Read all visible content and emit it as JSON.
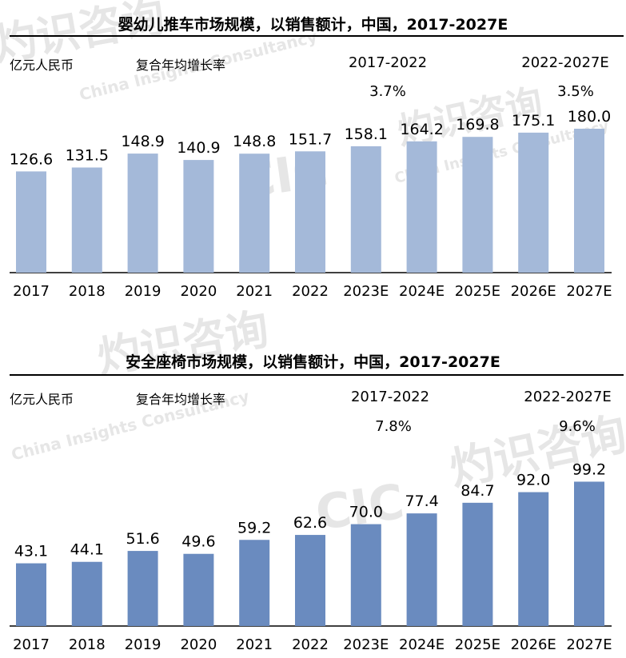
{
  "chart_data": [
    {
      "type": "bar",
      "title": "婴幼儿推车市场规模，以销售额计，中国，2017-2027E",
      "ylabel": "亿元人民币",
      "cagr_label": "复合年均增长率",
      "cagr": [
        {
          "period": "2017-2022",
          "value": "3.7%"
        },
        {
          "period": "2022-2027E",
          "value": "3.5%"
        }
      ],
      "categories": [
        "2017",
        "2018",
        "2019",
        "2020",
        "2021",
        "2022",
        "2023E",
        "2024E",
        "2025E",
        "2026E",
        "2027E"
      ],
      "values": [
        126.6,
        131.5,
        148.9,
        140.9,
        148.8,
        151.7,
        158.1,
        164.2,
        169.8,
        175.1,
        180.0
      ],
      "value_labels": [
        "126.6",
        "131.5",
        "148.9",
        "140.9",
        "148.8",
        "151.7",
        "158.1",
        "164.2",
        "169.8",
        "175.1",
        "180.0"
      ],
      "bar_color": "#a4b9d9"
    },
    {
      "type": "bar",
      "title": "安全座椅市场规模，以销售额计，中国，2017-2027E",
      "ylabel": "亿元人民币",
      "cagr_label": "复合年均增长率",
      "cagr": [
        {
          "period": "2017-2022",
          "value": "7.8%"
        },
        {
          "period": "2022-2027E",
          "value": "9.6%"
        }
      ],
      "categories": [
        "2017",
        "2018",
        "2019",
        "2020",
        "2021",
        "2022",
        "2023E",
        "2024E",
        "2025E",
        "2026E",
        "2027E"
      ],
      "values": [
        43.1,
        44.1,
        51.6,
        49.6,
        59.2,
        62.6,
        70.0,
        77.4,
        84.7,
        92.0,
        99.2
      ],
      "value_labels": [
        "43.1",
        "44.1",
        "51.6",
        "49.6",
        "59.2",
        "62.6",
        "70.0",
        "77.4",
        "84.7",
        "92.0",
        "99.2"
      ],
      "bar_color": "#6a8bbf"
    }
  ],
  "watermark": {
    "brand_cn": "灼识咨询",
    "brand_en": "China Insights Consultancy",
    "logo": "CIC"
  }
}
